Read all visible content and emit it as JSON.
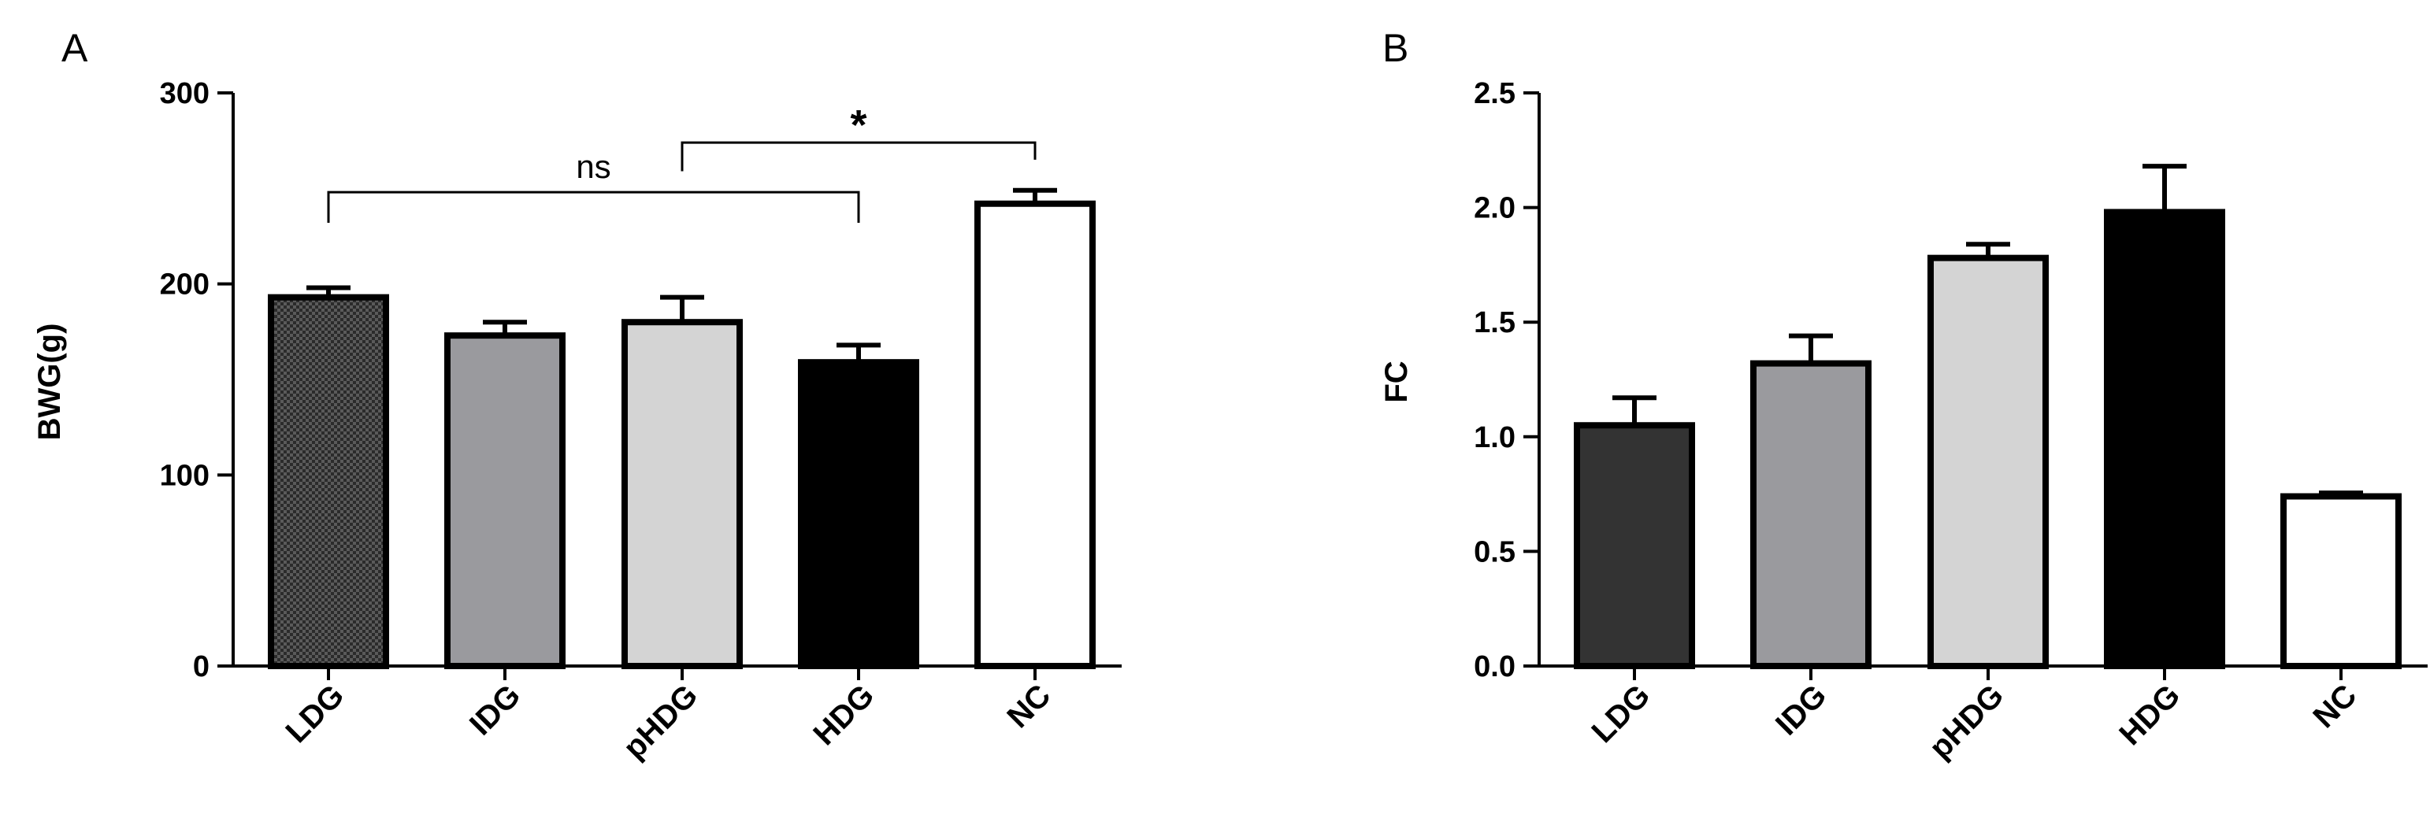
{
  "chart_data": [
    {
      "panel": "A",
      "type": "bar",
      "ylabel": "BWG(g)",
      "ylim": [
        0,
        300
      ],
      "yticks": [
        0,
        100,
        200,
        300
      ],
      "categories": [
        "LDG",
        "IDG",
        "pHDG",
        "HDG",
        "NC"
      ],
      "values": [
        193,
        173,
        180,
        159,
        242
      ],
      "errors": [
        5,
        7,
        13,
        9,
        7
      ],
      "colors": [
        "#3a3a3a",
        "#9a9a9e",
        "#d4d4d4",
        "#000000",
        "#ffffff"
      ],
      "patterns": [
        "checker",
        "none",
        "none",
        "none",
        "none"
      ],
      "annotations": [
        {
          "label": "ns",
          "from": "LDG",
          "to": "HDG",
          "y": 248,
          "left_drop": 16,
          "right_drop": 16,
          "style": "normal"
        },
        {
          "label": "*",
          "from": "pHDG",
          "to": "NC",
          "y": 274,
          "left_drop": 15,
          "right_drop": 9,
          "style": "star"
        }
      ]
    },
    {
      "panel": "B",
      "type": "bar",
      "ylabel": "FC",
      "ylim": [
        0,
        2.5
      ],
      "yticks": [
        "0.0",
        "0.5",
        "1.0",
        "1.5",
        "2.0",
        "2.5"
      ],
      "categories": [
        "LDG",
        "IDG",
        "pHDG",
        "HDG",
        "NC"
      ],
      "values": [
        1.05,
        1.32,
        1.78,
        1.98,
        0.74
      ],
      "errors": [
        0.12,
        0.12,
        0.06,
        0.2,
        0.015
      ],
      "colors": [
        "#333333",
        "#9a9a9e",
        "#d4d4d4",
        "#000000",
        "#ffffff"
      ],
      "patterns": [
        "none",
        "none",
        "none",
        "none",
        "none"
      ]
    }
  ]
}
